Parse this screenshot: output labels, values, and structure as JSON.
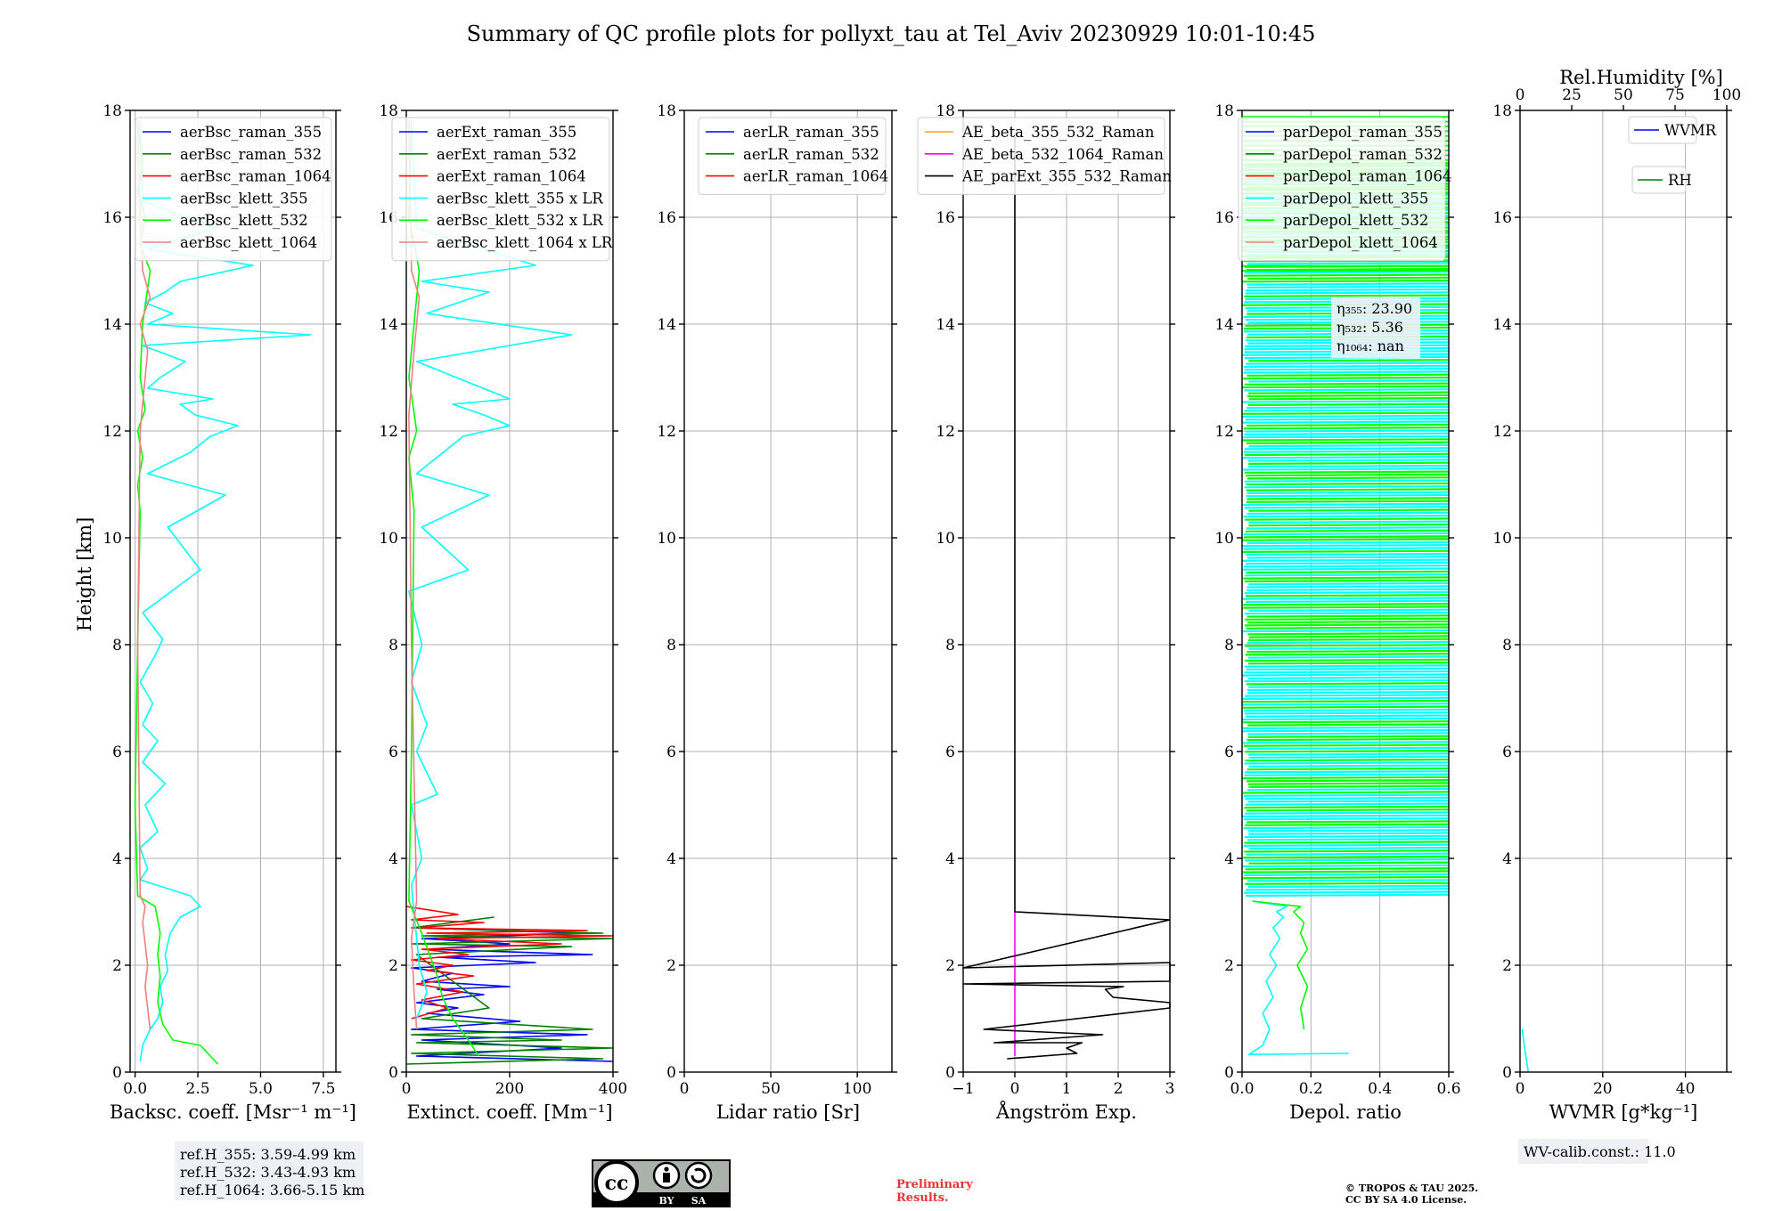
{
  "title": "Summary of QC profile plots for pollyxt_tau at Tel_Aviv 20230929 10:01-10:45",
  "ylabel": "Height [km]",
  "yticks": [
    "0",
    "2",
    "4",
    "6",
    "8",
    "10",
    "12",
    "14",
    "16",
    "18"
  ],
  "chart_data": [
    {
      "type": "line",
      "id": "backscatter",
      "xlabel": "Backsc. coeff. [Msr⁻¹ m⁻¹]",
      "xlim": [
        -0.2,
        8
      ],
      "ylim": [
        0,
        18
      ],
      "xticks": [
        "0.0",
        "2.5",
        "5.0",
        "7.5"
      ],
      "xtick_values": [
        0,
        2.5,
        5,
        7.5
      ],
      "legend": [
        {
          "label": "aerBsc_raman_355",
          "color": "#0000ff"
        },
        {
          "label": "aerBsc_raman_532",
          "color": "#008000"
        },
        {
          "label": "aerBsc_raman_1064",
          "color": "#ff0000"
        },
        {
          "label": "aerBsc_klett_355",
          "color": "#00ffff"
        },
        {
          "label": "aerBsc_klett_532",
          "color": "#00ff00"
        },
        {
          "label": "aerBsc_klett_1064",
          "color": "#f08080"
        }
      ],
      "series": [
        {
          "name": "aerBsc_klett_355",
          "color": "#00ffff",
          "x": [
            0.2,
            0.3,
            0.6,
            0.9,
            1.1,
            1.0,
            1.3,
            1.2,
            1.4,
            1.8,
            2.6,
            2.2,
            0.2,
            0.5,
            0.2,
            0.9,
            0.4,
            1.2,
            0.3,
            0.9,
            0.3,
            0.7,
            0.2,
            0.8,
            1.1,
            0.3,
            2.6,
            1.3,
            3.6,
            0.5,
            2.2,
            3.0,
            4.1,
            2.4,
            1.8,
            3.1,
            0.5,
            1.0,
            2.0,
            0.3,
            7.0,
            0.5,
            1.5,
            0.4,
            1.2,
            1.8,
            4.7,
            0.5,
            3.2,
            0.3,
            0.2
          ],
          "y": [
            0.2,
            0.5,
            0.8,
            1.0,
            1.3,
            1.6,
            1.9,
            2.2,
            2.6,
            2.9,
            3.1,
            3.3,
            3.6,
            3.8,
            4.2,
            4.5,
            5.0,
            5.4,
            5.8,
            6.2,
            6.5,
            6.9,
            7.3,
            7.8,
            8.1,
            8.6,
            9.4,
            10.2,
            10.8,
            11.2,
            11.6,
            11.9,
            12.1,
            12.3,
            12.5,
            12.6,
            12.8,
            13.0,
            13.3,
            13.6,
            13.8,
            14.0,
            14.2,
            14.4,
            14.6,
            14.8,
            15.1,
            15.4,
            15.8,
            16.3,
            17.8
          ]
        },
        {
          "name": "aerBsc_klett_532",
          "color": "#00ff00",
          "x": [
            3.3,
            2.8,
            2.6,
            1.5,
            1.1,
            0.9,
            1.0,
            0.9,
            1.0,
            0.8,
            0.1,
            0.0,
            0.1,
            0.2,
            0.1,
            0.3,
            0.1,
            0.4,
            0.2,
            0.3,
            0.6,
            0.2,
            0.4,
            0.1,
            0.3,
            0.1
          ],
          "y": [
            0.15,
            0.4,
            0.5,
            0.6,
            0.9,
            1.3,
            1.8,
            2.2,
            2.6,
            3.1,
            3.3,
            5.0,
            8.0,
            10.5,
            11.0,
            11.5,
            12.0,
            12.4,
            13.0,
            14.0,
            15.0,
            15.5,
            16.0,
            16.5,
            17.0,
            17.8
          ]
        },
        {
          "name": "aerBsc_klett_1064",
          "color": "#f08080",
          "x": [
            0.6,
            0.5,
            0.4,
            0.5,
            0.4,
            0.3,
            0.4,
            0.2,
            0.1,
            0.2,
            0.3,
            0.5,
            0.2,
            0.6,
            0.3,
            0.2,
            0.1
          ],
          "y": [
            0.8,
            1.2,
            1.6,
            2.0,
            2.4,
            2.8,
            3.1,
            3.3,
            8.0,
            12.0,
            12.5,
            13.5,
            14.0,
            14.5,
            15.0,
            16.0,
            17.8
          ]
        }
      ]
    },
    {
      "type": "line",
      "id": "extinction",
      "xlabel": "Extinct. coeff. [Mm⁻¹]",
      "xlim": [
        0,
        400
      ],
      "ylim": [
        0,
        18
      ],
      "xticks": [
        "0",
        "200",
        "400"
      ],
      "xtick_values": [
        0,
        200,
        400
      ],
      "legend": [
        {
          "label": "aerExt_raman_355",
          "color": "#0000ff"
        },
        {
          "label": "aerExt_raman_532",
          "color": "#008000"
        },
        {
          "label": "aerExt_raman_1064",
          "color": "#ff0000"
        },
        {
          "label": "aerBsc_klett_355 x LR",
          "color": "#00ffff"
        },
        {
          "label": "aerBsc_klett_532 x LR",
          "color": "#00ff00"
        },
        {
          "label": "aerBsc_klett_1064 x LR",
          "color": "#f08080"
        }
      ],
      "series": [
        {
          "name": "aerExt_raman_355",
          "color": "#0000ff",
          "x": [
            400,
            20,
            300,
            30,
            350,
            10,
            220,
            40,
            100,
            20,
            150,
            60,
            200,
            30,
            90,
            10,
            250,
            60,
            360,
            40,
            200,
            30,
            340,
            20
          ],
          "y": [
            0.2,
            0.3,
            0.45,
            0.6,
            0.7,
            0.8,
            0.95,
            1.1,
            1.2,
            1.3,
            1.45,
            1.55,
            1.6,
            1.7,
            1.85,
            1.95,
            2.05,
            2.15,
            2.2,
            2.3,
            2.4,
            2.5,
            2.6,
            2.7
          ]
        },
        {
          "name": "aerExt_raman_532",
          "color": "#008000",
          "x": [
            0,
            380,
            10,
            400,
            20,
            300,
            10,
            360,
            30,
            160,
            20,
            320,
            10,
            400,
            30,
            380,
            10,
            170
          ],
          "y": [
            0.15,
            0.25,
            0.35,
            0.45,
            0.55,
            0.6,
            0.7,
            0.8,
            1.0,
            1.2,
            2.2,
            2.35,
            2.4,
            2.5,
            2.55,
            2.6,
            2.7,
            2.9
          ]
        },
        {
          "name": "aerExt_raman_1064",
          "color": "#ff0000",
          "x": [
            10,
            80,
            30,
            110,
            20,
            130,
            40,
            90,
            10,
            120,
            30,
            300,
            60,
            400,
            40,
            350,
            20,
            150,
            10,
            100,
            0
          ],
          "y": [
            1.0,
            1.2,
            1.35,
            1.5,
            1.65,
            1.8,
            1.9,
            2.0,
            2.1,
            2.2,
            2.3,
            2.4,
            2.5,
            2.55,
            2.6,
            2.65,
            2.7,
            2.8,
            2.85,
            2.95,
            3.1
          ]
        },
        {
          "name": "aerBsc_klett_355 x LR",
          "color": "#00ffff",
          "x": [
            20,
            40,
            25,
            10,
            30,
            10,
            60,
            20,
            40,
            10,
            30,
            5,
            120,
            30,
            160,
            20,
            110,
            200,
            150,
            90,
            200,
            20,
            320,
            40,
            160,
            30,
            250,
            20,
            10
          ],
          "y": [
            1.0,
            1.5,
            2.0,
            3.5,
            4.0,
            5.0,
            5.2,
            6.0,
            6.5,
            7.3,
            8.0,
            9.0,
            9.4,
            10.2,
            10.8,
            11.2,
            11.9,
            12.1,
            12.3,
            12.5,
            12.6,
            13.3,
            13.8,
            14.2,
            14.6,
            14.8,
            15.1,
            15.8,
            17.8
          ]
        },
        {
          "name": "aerBsc_klett_532 x LR",
          "color": "#00ff00",
          "x": [
            140,
            120,
            90,
            70,
            60,
            45,
            30,
            5,
            10,
            15,
            5,
            20,
            5,
            15,
            25,
            5,
            10
          ],
          "y": [
            0.3,
            0.6,
            1.0,
            1.4,
            1.8,
            2.2,
            2.6,
            3.2,
            6.0,
            10.5,
            11.5,
            12.0,
            13.0,
            14.0,
            15.0,
            16.0,
            17.8
          ]
        },
        {
          "name": "aerBsc_klett_1064 x LR",
          "color": "#f08080",
          "x": [
            20,
            15,
            10,
            20,
            10,
            5,
            15,
            25,
            10,
            5
          ],
          "y": [
            0.8,
            1.5,
            2.5,
            3.2,
            8.0,
            12.3,
            13.5,
            14.5,
            15.0,
            17.8
          ]
        }
      ]
    },
    {
      "type": "line",
      "id": "lidar-ratio",
      "xlabel": "Lidar ratio [Sr]",
      "xlim": [
        0,
        120
      ],
      "ylim": [
        0,
        18
      ],
      "xticks": [
        "0",
        "50",
        "100"
      ],
      "xtick_values": [
        0,
        50,
        100
      ],
      "legend": [
        {
          "label": "aerLR_raman_355",
          "color": "#0000ff"
        },
        {
          "label": "aerLR_raman_532",
          "color": "#008000"
        },
        {
          "label": "aerLR_raman_1064",
          "color": "#ff0000"
        }
      ],
      "series": []
    },
    {
      "type": "line",
      "id": "angstrom",
      "xlabel": "Ångström Exp.",
      "xlim": [
        -1,
        3
      ],
      "ylim": [
        0,
        18
      ],
      "xticks": [
        "−1",
        "0",
        "1",
        "2",
        "3"
      ],
      "xtick_values": [
        -1,
        0,
        1,
        2,
        3
      ],
      "legend": [
        {
          "label": "AE_beta_355_532_Raman",
          "color": "#ffa500"
        },
        {
          "label": "AE_beta_532_1064_Raman",
          "color": "#ff00ff"
        },
        {
          "label": "AE_parExt_355_532_Raman",
          "color": "#000000"
        }
      ],
      "series": [
        {
          "name": "AE_beta_532_1064_Raman",
          "color": "#ff00ff",
          "x": [
            0,
            0
          ],
          "y": [
            0.3,
            3.0
          ]
        },
        {
          "name": "AE_parExt_355_532_Raman",
          "color": "#000000",
          "x": [
            -0.15,
            1.2,
            1.0,
            1.3,
            -0.4,
            1.7,
            -0.6,
            3.0,
            3.0,
            1.9,
            1.75,
            2.1,
            -1.0,
            3.0,
            3.0,
            -1.0,
            3.1,
            0.0,
            0.0
          ],
          "y": [
            0.25,
            0.35,
            0.45,
            0.55,
            0.55,
            0.7,
            0.8,
            1.2,
            1.3,
            1.4,
            1.55,
            1.6,
            1.65,
            1.7,
            2.05,
            1.95,
            2.85,
            3.0,
            17.5
          ]
        }
      ]
    },
    {
      "type": "line",
      "id": "depol",
      "xlabel": "Depol. ratio",
      "xlim": [
        0,
        0.6
      ],
      "ylim": [
        0,
        18
      ],
      "xticks": [
        "0.0",
        "0.2",
        "0.4",
        "0.6"
      ],
      "xtick_values": [
        0,
        0.2,
        0.4,
        0.6
      ],
      "legend": [
        {
          "label": "parDepol_raman_355",
          "color": "#0000ff"
        },
        {
          "label": "parDepol_raman_532",
          "color": "#008000"
        },
        {
          "label": "parDepol_raman_1064",
          "color": "#ff0000"
        },
        {
          "label": "parDepol_klett_355",
          "color": "#00ffff"
        },
        {
          "label": "parDepol_klett_532",
          "color": "#00ff00"
        },
        {
          "label": "parDepol_klett_1064",
          "color": "#f08080"
        }
      ],
      "eta": [
        {
          "label": "η₃₅₅: 23.90"
        },
        {
          "label": "η₅₃₂: 5.36"
        },
        {
          "label": "η₁₀₆₄: nan"
        }
      ],
      "series": [
        {
          "name": "parDepol_klett_355",
          "color": "#00ffff",
          "x": [
            0.31,
            0.02,
            0.06,
            0.08,
            0.06,
            0.09,
            0.07,
            0.1,
            0.08,
            0.11,
            0.09,
            0.12,
            0.1,
            0.13,
            0.03
          ],
          "y": [
            0.35,
            0.33,
            0.5,
            0.8,
            1.1,
            1.4,
            1.7,
            2.0,
            2.2,
            2.5,
            2.7,
            2.9,
            3.0,
            3.1,
            3.2
          ]
        },
        {
          "name": "parDepol_klett_532",
          "color": "#00ff00",
          "x": [
            0.18,
            0.17,
            0.19,
            0.16,
            0.19,
            0.17,
            0.18,
            0.15,
            0.17,
            0.03
          ],
          "y": [
            0.8,
            1.2,
            1.6,
            2.0,
            2.3,
            2.6,
            2.8,
            3.0,
            3.1,
            3.2
          ]
        },
        {
          "name": "parDepol_klett_355 (noisy, 3.3-17 km)",
          "color": "#00ffff",
          "x": [
            0.6,
            0.6
          ],
          "y": [
            3.3,
            17.0
          ]
        },
        {
          "name": "parDepol_klett_532 (noisy, 3.8-18 km)",
          "color": "#00ff00",
          "x": [
            0.6,
            0.6
          ],
          "y": [
            3.8,
            18.0
          ]
        }
      ]
    },
    {
      "type": "line",
      "id": "wvmr",
      "xlabel": "WVMR [g*kg⁻¹]",
      "xlim": [
        0,
        50
      ],
      "ylim": [
        0,
        18
      ],
      "xticks": [
        "0",
        "20",
        "40"
      ],
      "xtick_values": [
        0,
        20,
        40
      ],
      "top_xlabel": "Rel.Humidity [%]",
      "top_xlim": [
        0,
        100
      ],
      "top_xticks": [
        "0",
        "25",
        "50",
        "75",
        "100"
      ],
      "top_xtick_values": [
        0,
        25,
        50,
        75,
        100
      ],
      "legend": [
        {
          "label": "WVMR",
          "color": "#0000ff"
        },
        {
          "label": "RH",
          "color": "#008000"
        }
      ],
      "series": [
        {
          "name": "WVMR",
          "color": "#00ffff",
          "x": [
            2.0,
            1.2,
            0.5
          ],
          "y": [
            0.0,
            0.4,
            0.8
          ]
        }
      ]
    }
  ],
  "refH": [
    "ref.H_355: 3.59-4.99 km",
    "ref.H_532: 3.43-4.93 km",
    "ref.H_1064: 3.66-5.15 km"
  ],
  "wv_calib": "WV-calib.const.: 11.0",
  "license_badge": {
    "cc": "cc",
    "by": "BY",
    "sa": "SA"
  },
  "preliminary": [
    "Preliminary",
    "Results."
  ],
  "copyright": [
    "© TROPOS & TAU 2025.",
    "CC BY SA 4.0 License."
  ]
}
